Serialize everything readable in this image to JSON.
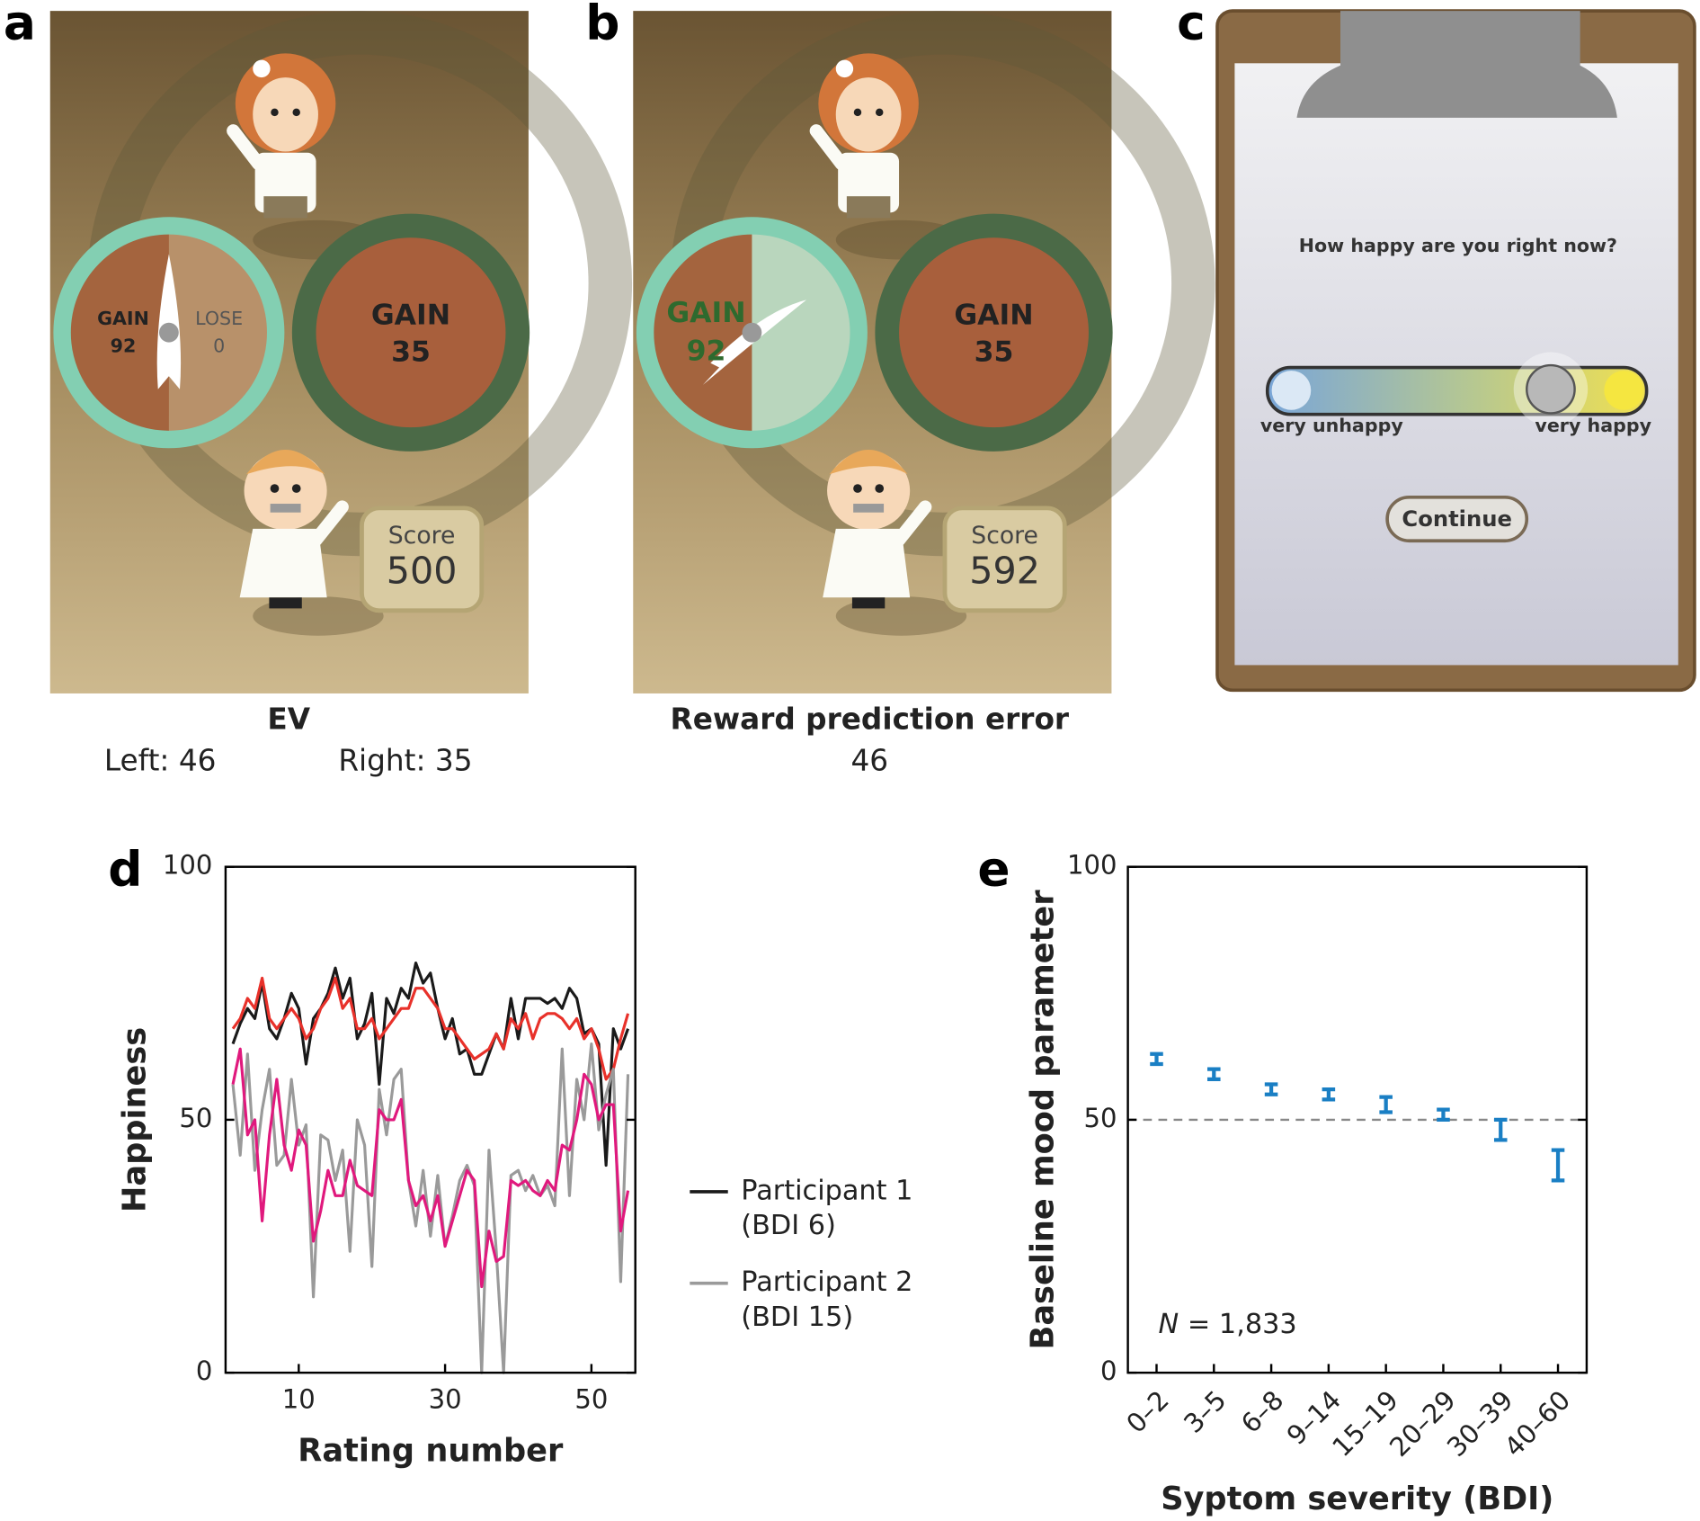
{
  "panels": [
    {
      "letter": "a",
      "gamble": [
        "GAIN",
        92,
        "LOSE",
        0
      ],
      "sure": [
        "GAIN",
        35
      ],
      "score": [
        "Score",
        500
      ],
      "caption": {
        "title": "EV",
        "lines": [
          "Left: 46",
          "Right: 35"
        ]
      }
    },
    {
      "letter": "b",
      "gamble": [
        "GAIN",
        92
      ],
      "sure": [
        "GAIN",
        35
      ],
      "score": [
        "Score",
        592
      ],
      "caption": {
        "title": "Reward prediction error",
        "lines": [
          46
        ]
      }
    },
    {
      "letter": "c",
      "question": "How happy are you right now?",
      "low": "very unhappy",
      "high": "very happy",
      "button": "Continue"
    }
  ],
  "chart_data": [
    {
      "type": "line",
      "letter": "d",
      "x_label": "Rating number",
      "y_label": "Happiness",
      "x": [
        1,
        2,
        3,
        4,
        5,
        6,
        7,
        8,
        9,
        10,
        11,
        12,
        13,
        14,
        15,
        16,
        17,
        18,
        19,
        20,
        21,
        22,
        23,
        24,
        25,
        26,
        27,
        28,
        29,
        30,
        31,
        32,
        33,
        34,
        35,
        36,
        37,
        38,
        39,
        40,
        41,
        42,
        43,
        44,
        45,
        46,
        47,
        48,
        49,
        50,
        51,
        52,
        53,
        54,
        55
      ],
      "xlim": [
        0,
        56
      ],
      "xticks": [
        10,
        30,
        50
      ],
      "ylim": [
        0,
        100
      ],
      "yticks": [
        0,
        50,
        100
      ],
      "series": [
        {
          "name": "Participant 1 (BDI 6)",
          "color": "#1a1a1a",
          "values": [
            65,
            69,
            72,
            70,
            77,
            68,
            66,
            70,
            75,
            72,
            61,
            70,
            72,
            75,
            80,
            74,
            78,
            66,
            69,
            75,
            57,
            74,
            71,
            76,
            74,
            81,
            77,
            79,
            72,
            66,
            70,
            63,
            64,
            59,
            59,
            63,
            67,
            64,
            74,
            66,
            74,
            74,
            74,
            73,
            74,
            72,
            76,
            74,
            67,
            68,
            65,
            41,
            68,
            64,
            68
          ]
        },
        {
          "color": "#e8312a",
          "values": [
            68,
            70,
            74,
            72,
            78,
            70,
            68,
            70,
            72,
            70,
            66,
            68,
            72,
            74,
            78,
            72,
            74,
            68,
            68,
            70,
            66,
            68,
            70,
            72,
            72,
            76,
            76,
            74,
            72,
            68,
            68,
            66,
            64,
            62,
            63,
            64,
            67,
            64,
            70,
            68,
            71,
            66,
            70,
            71,
            71,
            70,
            68,
            70,
            66,
            68,
            64,
            58,
            60,
            66,
            71
          ]
        },
        {
          "name": "Participant 2 (BDI 15)",
          "color": "#9a9a9a",
          "values": [
            57,
            43,
            63,
            40,
            52,
            60,
            41,
            43,
            58,
            45,
            49,
            15,
            47,
            46,
            38,
            44,
            24,
            50,
            45,
            21,
            56,
            47,
            58,
            60,
            38,
            29,
            40,
            27,
            39,
            25,
            31,
            38,
            41,
            37,
            0,
            44,
            24,
            0,
            39,
            40,
            36,
            39,
            35,
            37,
            33,
            64,
            35,
            58,
            50,
            65,
            48,
            55,
            60,
            18,
            59
          ]
        },
        {
          "color": "#e0197d",
          "values": [
            57,
            64,
            47,
            50,
            30,
            47,
            58,
            45,
            40,
            48,
            45,
            26,
            32,
            40,
            35,
            35,
            42,
            37,
            36,
            35,
            52,
            50,
            50,
            54,
            38,
            33,
            35,
            30,
            35,
            25,
            30,
            35,
            40,
            38,
            17,
            28,
            22,
            23,
            38,
            37,
            38,
            36,
            35,
            38,
            36,
            45,
            44,
            50,
            59,
            57,
            50,
            53,
            53,
            28,
            36
          ]
        }
      ]
    },
    {
      "type": "errorbar",
      "letter": "e",
      "x_label": "Syptom severity (BDI)",
      "y_label": "Baseline mood parameter",
      "categories": [
        "0–2",
        "3–5",
        "6–8",
        "9–14",
        "15–19",
        "20–29",
        "30–39",
        "40–60"
      ],
      "values": [
        62,
        59,
        56,
        55,
        53,
        51,
        48,
        41
      ],
      "errors": [
        1,
        1,
        1,
        1,
        1.5,
        1,
        2,
        3
      ],
      "color": "#1a7fc4",
      "ylim": [
        0,
        100
      ],
      "yticks": [
        0,
        50,
        100
      ],
      "reference_line": 50,
      "annotation": [
        "N",
        "= 1,833"
      ]
    }
  ]
}
